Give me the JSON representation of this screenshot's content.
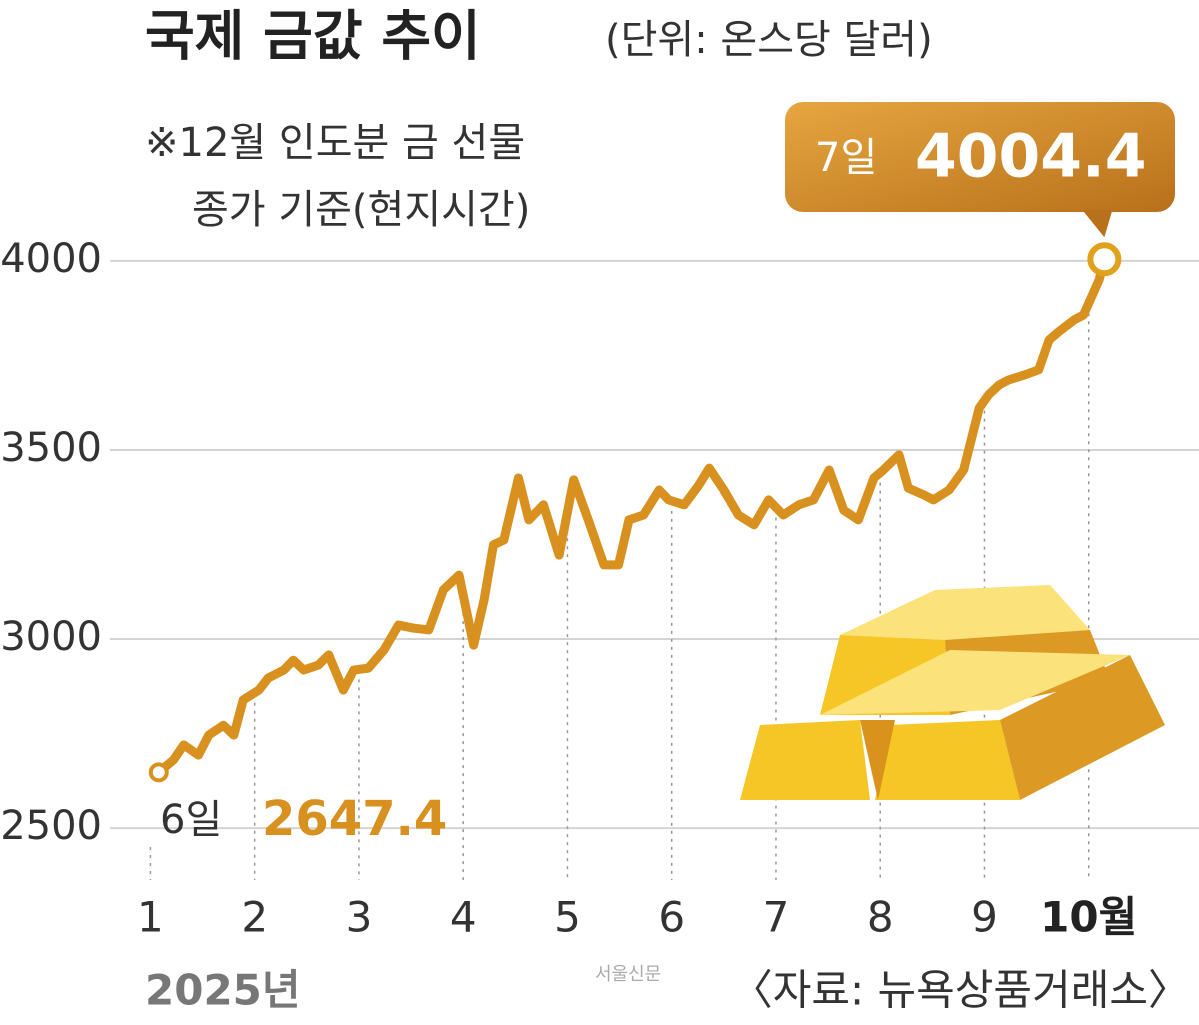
{
  "chart_data": {
    "type": "line",
    "title": "국제 금값 추이",
    "subtitle": "(단위: 온스당 달러)",
    "notes": [
      "※12월 인도분 금 선물",
      "종가 기준(현지시간)"
    ],
    "x": [
      1.08,
      1.22,
      1.32,
      1.46,
      1.56,
      1.7,
      1.8,
      1.89,
      2.04,
      2.13,
      2.28,
      2.37,
      2.47,
      2.61,
      2.71,
      2.85,
      2.95,
      3.09,
      3.24,
      3.38,
      3.52,
      3.67,
      3.81,
      3.96,
      4.1,
      4.2,
      4.29,
      4.39,
      4.53,
      4.63,
      4.77,
      4.92,
      5.06,
      5.2,
      5.35,
      5.49,
      5.59,
      5.73,
      5.88,
      5.97,
      6.12,
      6.26,
      6.36,
      6.5,
      6.64,
      6.79,
      6.93,
      7.07,
      7.22,
      7.36,
      7.51,
      7.65,
      7.79,
      7.94,
      8.03,
      8.18,
      8.27,
      8.42,
      8.51,
      8.66,
      8.8,
      8.95,
      9.04,
      9.14,
      9.23,
      9.38,
      9.52,
      9.62,
      9.71,
      9.86,
      9.95,
      10.1,
      10.15
    ],
    "values": [
      2647.4,
      2680,
      2720,
      2693,
      2746,
      2772,
      2746,
      2839,
      2865,
      2897,
      2918,
      2944,
      2918,
      2931,
      2958,
      2865,
      2918,
      2923,
      2971,
      3037,
      3029,
      3024,
      3130,
      3169,
      2984,
      3103,
      3249,
      3262,
      3426,
      3315,
      3355,
      3222,
      3421,
      3315,
      3196,
      3196,
      3315,
      3328,
      3394,
      3368,
      3355,
      3407,
      3452,
      3394,
      3328,
      3302,
      3368,
      3328,
      3355,
      3368,
      3447,
      3341,
      3315,
      3426,
      3447,
      3487,
      3399,
      3381,
      3368,
      3394,
      3447,
      3611,
      3646,
      3672,
      3685,
      3698,
      3712,
      3791,
      3812,
      3844,
      3857,
      3950,
      4004.4
    ],
    "color": "#d8901f",
    "xlim": [
      0.9,
      10.3
    ],
    "ylim": [
      2450,
      4050
    ],
    "xticks": [
      1,
      2,
      3,
      4,
      5,
      6,
      7,
      8,
      9,
      {
        "value": 10,
        "label": "10월"
      }
    ],
    "yticks": [
      2500,
      3000,
      3500,
      4000
    ],
    "grid": true,
    "x_label": "2025년",
    "annotations": [
      {
        "text": "6일",
        "value": 2647.4
      },
      {
        "text": "7일",
        "value": 4004.4
      }
    ],
    "source": "〈자료: 뉴욕상품거래소〉",
    "credit": "서울신문"
  }
}
